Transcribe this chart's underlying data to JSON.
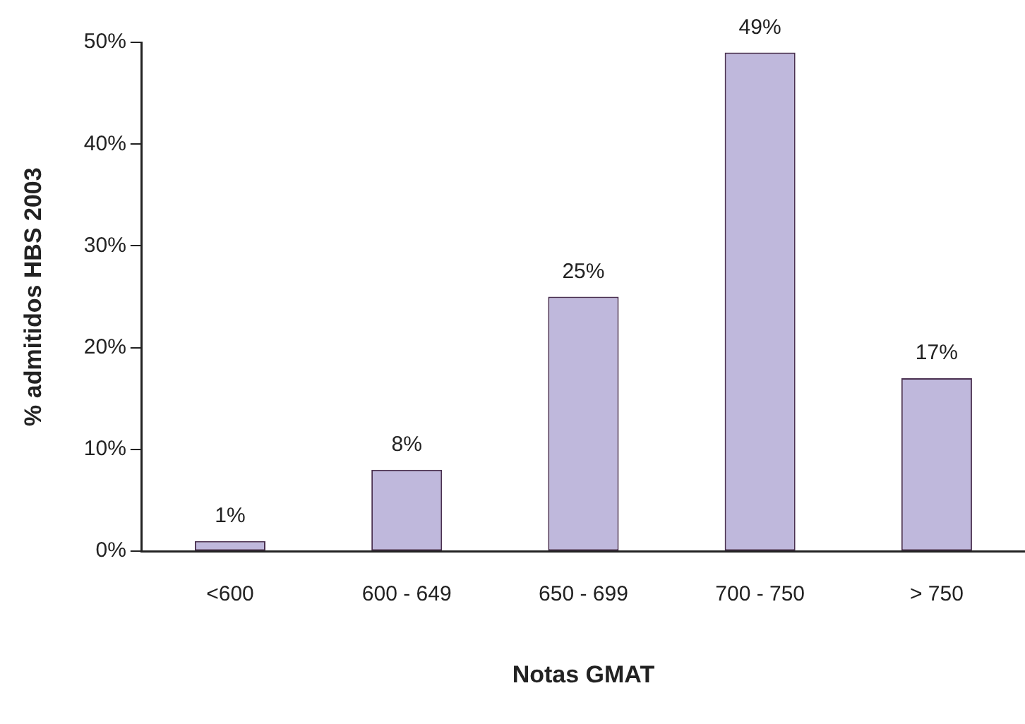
{
  "chart_data": {
    "type": "bar",
    "xlabel": "Notas GMAT",
    "ylabel": "% admitidos HBS 2003",
    "categories": [
      "<600",
      "600 - 649",
      "650 - 699",
      "700 - 750",
      "> 750"
    ],
    "values": [
      1,
      8,
      25,
      49,
      17
    ],
    "color": "#bfb8dc",
    "ylim": [
      0,
      50
    ],
    "yticks": [
      {
        "value": 0,
        "label": "0%"
      },
      {
        "value": 10,
        "label": "10%"
      },
      {
        "value": 20,
        "label": "20%"
      },
      {
        "value": 30,
        "label": "30%"
      },
      {
        "value": 40,
        "label": "40%"
      },
      {
        "value": 50,
        "label": "50%"
      }
    ],
    "value_labels": [
      "1%",
      "8%",
      "25%",
      "49%",
      "17%"
    ],
    "grid": false,
    "legend": false
  }
}
